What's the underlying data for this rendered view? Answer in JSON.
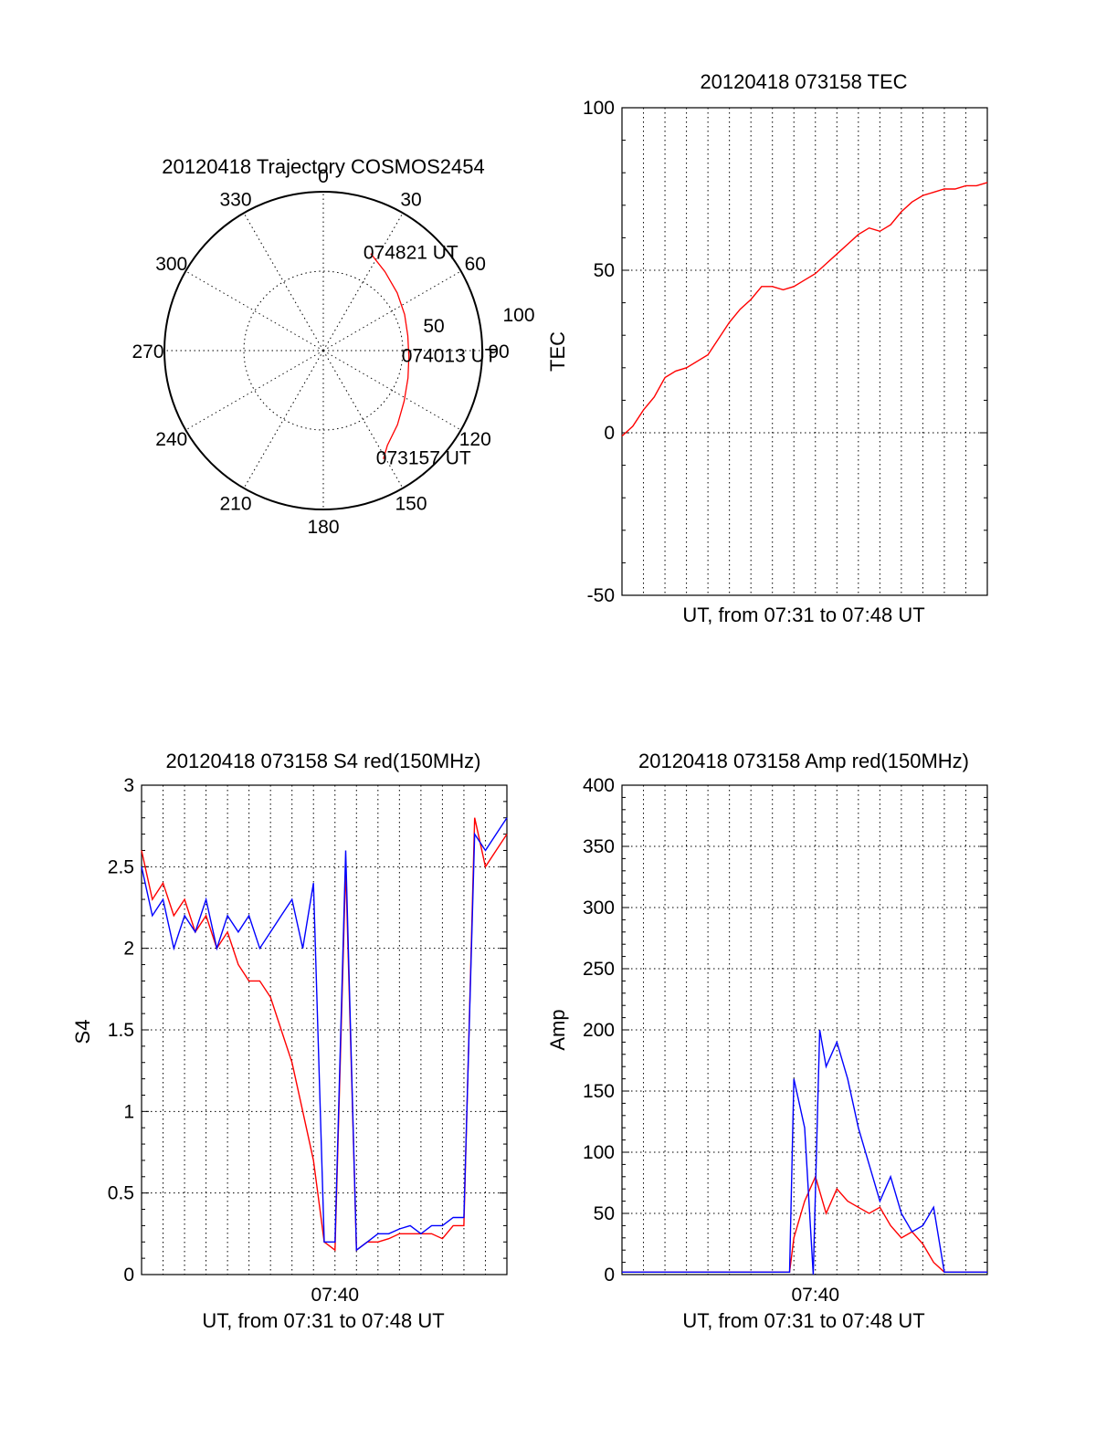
{
  "figure": {
    "colors": {
      "red": "#ff0000",
      "blue": "#0000ff",
      "axes": "#000000"
    }
  },
  "chart_data": [
    {
      "type": "polar",
      "title": "20120418 Trajectory COSMOS2454",
      "azimuth_labels": [
        "0",
        "30",
        "60",
        "90",
        "120",
        "150",
        "180",
        "210",
        "240",
        "270",
        "300",
        "330"
      ],
      "radial_labels": [
        "50",
        "100"
      ],
      "radial_range": [
        0,
        100
      ],
      "grid": true,
      "series": [
        {
          "color": "#ff0000",
          "points": [
            {
              "az": 26,
              "r": 68
            },
            {
              "az": 38,
              "r": 63
            },
            {
              "az": 52,
              "r": 59
            },
            {
              "az": 66,
              "r": 56
            },
            {
              "az": 80,
              "r": 54
            },
            {
              "az": 94,
              "r": 54
            },
            {
              "az": 108,
              "r": 56
            },
            {
              "az": 122,
              "r": 60
            },
            {
              "az": 135,
              "r": 66
            },
            {
              "az": 146,
              "r": 72
            },
            {
              "az": 151,
              "r": 78
            }
          ]
        }
      ],
      "annotations": [
        {
          "text": "074821 UT",
          "az": 26,
          "r": 68
        },
        {
          "text": "074013 UT",
          "az": 94,
          "r": 54
        },
        {
          "text": "073157 UT",
          "az": 151,
          "r": 78
        }
      ]
    },
    {
      "type": "line",
      "title": "20120418 073158 TEC",
      "xlabel": "UT, from 07:31 to 07:48 UT",
      "ylabel": "TEC",
      "x_range_min": [
        0,
        17
      ],
      "ylim": [
        -50,
        100
      ],
      "yticks": [
        "-50",
        "0",
        "50",
        "100"
      ],
      "xticks": [],
      "grid": true,
      "series": [
        {
          "color": "#ff0000",
          "x": [
            0,
            0.5,
            1,
            1.5,
            2,
            2.5,
            3,
            3.5,
            4,
            4.5,
            5,
            5.5,
            6,
            6.5,
            7,
            7.5,
            8,
            8.5,
            9,
            9.5,
            10,
            10.5,
            11,
            11.5,
            12,
            12.5,
            13,
            13.5,
            14,
            14.5,
            15,
            15.5,
            16,
            16.5,
            17
          ],
          "y": [
            -1,
            2,
            7,
            11,
            17,
            19,
            20,
            22,
            24,
            29,
            34,
            38,
            41,
            45,
            45,
            44,
            45,
            47,
            49,
            52,
            55,
            58,
            61,
            63,
            62,
            64,
            68,
            71,
            73,
            74,
            75,
            75,
            76,
            76,
            77
          ]
        }
      ]
    },
    {
      "type": "line",
      "title": "20120418 073158 S4 red(150MHz)",
      "xlabel": "UT, from 07:31 to 07:48 UT",
      "ylabel": "S4",
      "x_range_min": [
        0,
        17
      ],
      "ylim": [
        0,
        3
      ],
      "yticks": [
        "0",
        "0.5",
        "1",
        "1.5",
        "2",
        "2.5",
        "3"
      ],
      "xticks": [
        {
          "x": 9,
          "label": "07:40"
        }
      ],
      "grid": true,
      "series": [
        {
          "color": "#ff0000",
          "x": [
            0,
            0.5,
            1,
            1.5,
            2,
            2.5,
            3,
            3.5,
            4,
            4.5,
            5,
            5.5,
            6,
            6.5,
            7,
            7.5,
            8,
            8.5,
            9,
            9.5,
            10,
            10.5,
            11,
            11.5,
            12,
            12.5,
            13,
            13.5,
            14,
            14.5,
            15,
            15.5,
            16,
            16.5,
            17
          ],
          "y": [
            2.6,
            2.3,
            2.4,
            2.2,
            2.3,
            2.1,
            2.2,
            2.0,
            2.1,
            1.9,
            1.8,
            1.8,
            1.7,
            1.5,
            1.3,
            1.0,
            0.7,
            0.2,
            0.15,
            2.5,
            0.15,
            0.2,
            0.2,
            0.22,
            0.25,
            0.25,
            0.25,
            0.25,
            0.22,
            0.3,
            0.3,
            2.8,
            2.5,
            2.6,
            2.7
          ]
        },
        {
          "color": "#0000ff",
          "x": [
            0,
            0.5,
            1,
            1.5,
            2,
            2.5,
            3,
            3.5,
            4,
            4.5,
            5,
            5.5,
            6,
            6.5,
            7,
            7.5,
            8,
            8.5,
            9,
            9.5,
            10,
            10.5,
            11,
            11.5,
            12,
            12.5,
            13,
            13.5,
            14,
            14.5,
            15,
            15.5,
            16,
            16.5,
            17
          ],
          "y": [
            2.5,
            2.2,
            2.3,
            2.0,
            2.2,
            2.1,
            2.3,
            2.0,
            2.2,
            2.1,
            2.2,
            2.0,
            2.1,
            2.2,
            2.3,
            2.0,
            2.4,
            0.2,
            0.2,
            2.6,
            0.15,
            0.2,
            0.25,
            0.25,
            0.28,
            0.3,
            0.25,
            0.3,
            0.3,
            0.35,
            0.35,
            2.7,
            2.6,
            2.7,
            2.8
          ]
        }
      ]
    },
    {
      "type": "line",
      "title": "20120418 073158 Amp red(150MHz)",
      "xlabel": "UT, from 07:31 to 07:48 UT",
      "ylabel": "Amp",
      "x_range_min": [
        0,
        17
      ],
      "ylim": [
        0,
        400
      ],
      "yticks": [
        "0",
        "50",
        "100",
        "150",
        "200",
        "250",
        "300",
        "350",
        "400"
      ],
      "xticks": [
        {
          "x": 9,
          "label": "07:40"
        }
      ],
      "grid": true,
      "series": [
        {
          "color": "#ff0000",
          "x": [
            0,
            1,
            2,
            3,
            4,
            5,
            6,
            7,
            7.8,
            8,
            8.5,
            9,
            9.5,
            10,
            10.5,
            11,
            11.5,
            12,
            12.5,
            13,
            13.5,
            14,
            14.5,
            15,
            16,
            17
          ],
          "y": [
            2,
            2,
            2,
            2,
            2,
            2,
            2,
            2,
            2,
            30,
            60,
            80,
            50,
            70,
            60,
            55,
            50,
            55,
            40,
            30,
            35,
            25,
            10,
            2,
            2,
            2
          ]
        },
        {
          "color": "#0000ff",
          "x": [
            0,
            1,
            2,
            3,
            4,
            5,
            6,
            7,
            7.8,
            8,
            8.5,
            8.9,
            9.2,
            9.5,
            10,
            10.5,
            11,
            11.5,
            12,
            12.5,
            13,
            13.5,
            14,
            14.5,
            15,
            16,
            17
          ],
          "y": [
            2,
            2,
            2,
            2,
            2,
            2,
            2,
            2,
            2,
            160,
            120,
            0,
            200,
            170,
            190,
            160,
            120,
            90,
            60,
            80,
            50,
            35,
            40,
            55,
            2,
            2,
            2
          ]
        }
      ]
    }
  ]
}
